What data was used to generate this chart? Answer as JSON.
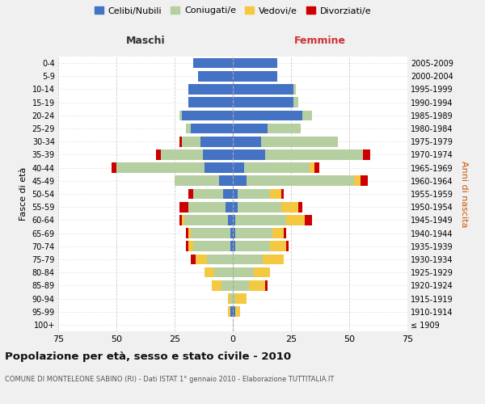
{
  "age_groups": [
    "100+",
    "95-99",
    "90-94",
    "85-89",
    "80-84",
    "75-79",
    "70-74",
    "65-69",
    "60-64",
    "55-59",
    "50-54",
    "45-49",
    "40-44",
    "35-39",
    "30-34",
    "25-29",
    "20-24",
    "15-19",
    "10-14",
    "5-9",
    "0-4"
  ],
  "birth_years": [
    "≤ 1909",
    "1910-1914",
    "1915-1919",
    "1920-1924",
    "1925-1929",
    "1930-1934",
    "1935-1939",
    "1940-1944",
    "1945-1949",
    "1950-1954",
    "1955-1959",
    "1960-1964",
    "1965-1969",
    "1970-1974",
    "1975-1979",
    "1980-1984",
    "1985-1989",
    "1990-1994",
    "1995-1999",
    "2000-2004",
    "2005-2009"
  ],
  "male": {
    "celibi": [
      0,
      1,
      0,
      0,
      0,
      0,
      1,
      1,
      2,
      3,
      4,
      6,
      12,
      13,
      14,
      18,
      22,
      19,
      19,
      15,
      17
    ],
    "coniugati": [
      0,
      0,
      1,
      5,
      8,
      11,
      16,
      17,
      19,
      16,
      13,
      19,
      38,
      18,
      8,
      2,
      1,
      0,
      0,
      0,
      0
    ],
    "vedovi": [
      0,
      1,
      1,
      4,
      4,
      5,
      2,
      1,
      1,
      0,
      0,
      0,
      0,
      0,
      0,
      0,
      0,
      0,
      0,
      0,
      0
    ],
    "divorziati": [
      0,
      0,
      0,
      0,
      0,
      2,
      1,
      1,
      1,
      4,
      2,
      0,
      2,
      2,
      1,
      0,
      0,
      0,
      0,
      0,
      0
    ]
  },
  "female": {
    "nubili": [
      0,
      1,
      0,
      0,
      0,
      0,
      1,
      1,
      1,
      2,
      2,
      6,
      5,
      14,
      12,
      15,
      30,
      26,
      26,
      19,
      19
    ],
    "coniugate": [
      0,
      0,
      1,
      7,
      9,
      13,
      15,
      16,
      22,
      19,
      14,
      46,
      28,
      42,
      33,
      14,
      4,
      2,
      1,
      0,
      0
    ],
    "vedove": [
      0,
      2,
      5,
      7,
      7,
      9,
      7,
      5,
      8,
      7,
      5,
      3,
      2,
      0,
      0,
      0,
      0,
      0,
      0,
      0,
      0
    ],
    "divorziate": [
      0,
      0,
      0,
      1,
      0,
      0,
      1,
      1,
      3,
      2,
      1,
      3,
      2,
      3,
      0,
      0,
      0,
      0,
      0,
      0,
      0
    ]
  },
  "colors": {
    "celibi": "#4472c4",
    "coniugati": "#b5cfa0",
    "vedovi": "#f5c842",
    "divorziati": "#cc0000"
  },
  "xlim": 75,
  "title": "Popolazione per età, sesso e stato civile - 2010",
  "subtitle": "COMUNE DI MONTELEONE SABINO (RI) - Dati ISTAT 1° gennaio 2010 - Elaborazione TUTTITALIA.IT",
  "ylabel_left": "Fasce di età",
  "ylabel_right": "Anni di nascita",
  "xlabel_left": "Maschi",
  "xlabel_right": "Femmine",
  "bg_color": "#f0f0f0",
  "plot_bg": "#ffffff",
  "legend_labels": [
    "Celibi/Nubili",
    "Coniugati/e",
    "Vedovi/e",
    "Divorziati/e"
  ]
}
